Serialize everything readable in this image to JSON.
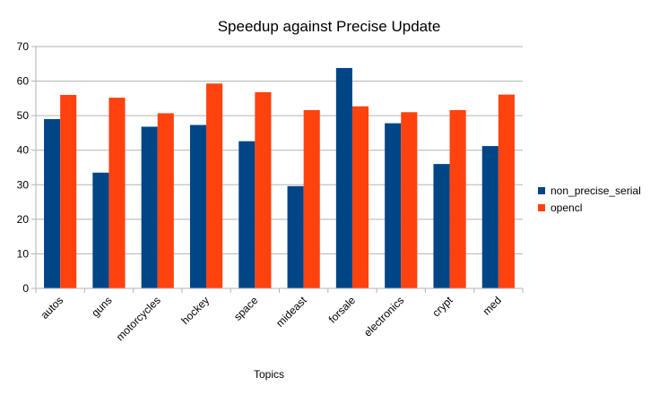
{
  "chart_data": {
    "type": "bar",
    "title": "Speedup against Precise Update",
    "xlabel": "Topics",
    "ylabel": "",
    "ylim": [
      0,
      70
    ],
    "yticks": [
      0,
      10,
      20,
      30,
      40,
      50,
      60,
      70
    ],
    "grid": true,
    "legend_position": "right",
    "categories": [
      "autos",
      "guns",
      "motorcycles",
      "hockey",
      "space",
      "mideast",
      "forsale",
      "electronics",
      "crypt",
      "med"
    ],
    "series": [
      {
        "name": "non_precise_serial",
        "color": "#004586",
        "values": [
          49,
          33.5,
          46.8,
          47.3,
          42.6,
          29.6,
          63.8,
          47.8,
          36,
          41.2
        ]
      },
      {
        "name": "opencl",
        "color": "#ff420e",
        "values": [
          56,
          55.2,
          50.7,
          59.3,
          56.8,
          51.6,
          52.7,
          51,
          51.6,
          56.1
        ]
      }
    ]
  }
}
